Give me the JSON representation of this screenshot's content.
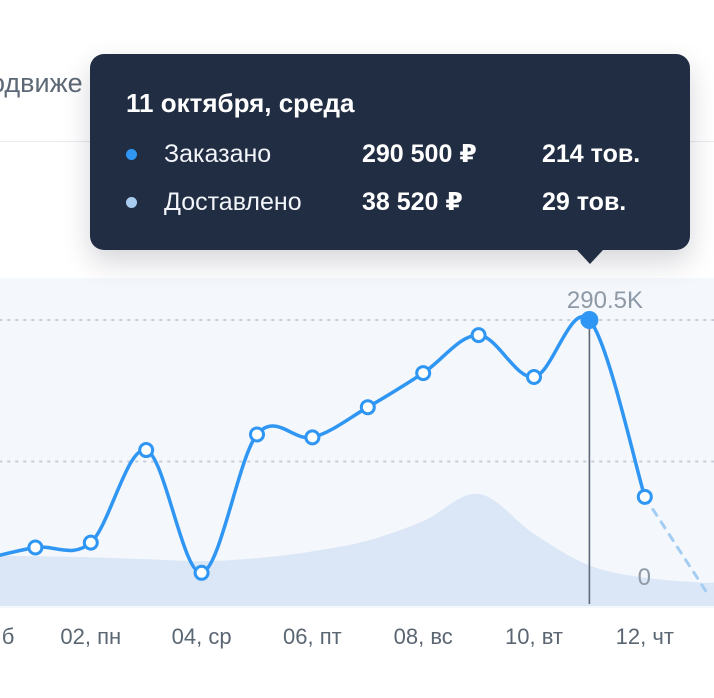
{
  "header": {
    "partial_tab_label": "одвиже"
  },
  "tooltip": {
    "title": "11 октября, среда",
    "rows": [
      {
        "label": "Заказано",
        "amount": "290 500 ₽",
        "quantity": "214 тов.",
        "dot_color": "#2f96f3"
      },
      {
        "label": "Доставлено",
        "amount": "38 520 ₽",
        "quantity": "29 тов.",
        "dot_color": "#a9cdf1"
      }
    ]
  },
  "colors": {
    "tooltip_bg": "#212d42",
    "accent_blue": "#2f96f3",
    "pale_blue": "#a9cdf1"
  },
  "chart_data": {
    "type": "line",
    "title": "",
    "xlabel": "",
    "ylabel": "",
    "x_labels": [
      "б",
      "02, пн",
      "04, ср",
      "06, пт",
      "08, вс",
      "10, вт",
      "12, чт"
    ],
    "y_axis_labels": {
      "max": "290.5K",
      "zero": "0"
    },
    "ylim": [
      0,
      290500
    ],
    "grid": "dotted horizontal lines at max and half-max",
    "legend_position": "none",
    "highlight_index": 11,
    "highlight": {
      "date": "11 октября, среда",
      "ordered_value": 290500,
      "delivered_value": 38520
    },
    "series": [
      {
        "name": "Заказано",
        "style": "line-with-markers",
        "color": "#2f96f3",
        "values": [
          44000,
          57000,
          62000,
          157000,
          31000,
          173000,
          170000,
          201000,
          236000,
          275000,
          232000,
          290500,
          109000
        ],
        "projection_value": 12000
      },
      {
        "name": "Доставлено",
        "style": "area",
        "color": "#dbe7f6",
        "values": [
          49000,
          48000,
          47000,
          45000,
          43000,
          46000,
          53000,
          64000,
          84000,
          112000,
          71000,
          38520,
          26000,
          21000
        ]
      }
    ],
    "colors": {
      "plot_bg": "#f4f7fb",
      "grid": "#c6cfd9",
      "marker_line": "#5e6a79",
      "projection": "#a3cdf2",
      "axis_text": "#5b6673",
      "y_label": "#8e99a6"
    }
  }
}
